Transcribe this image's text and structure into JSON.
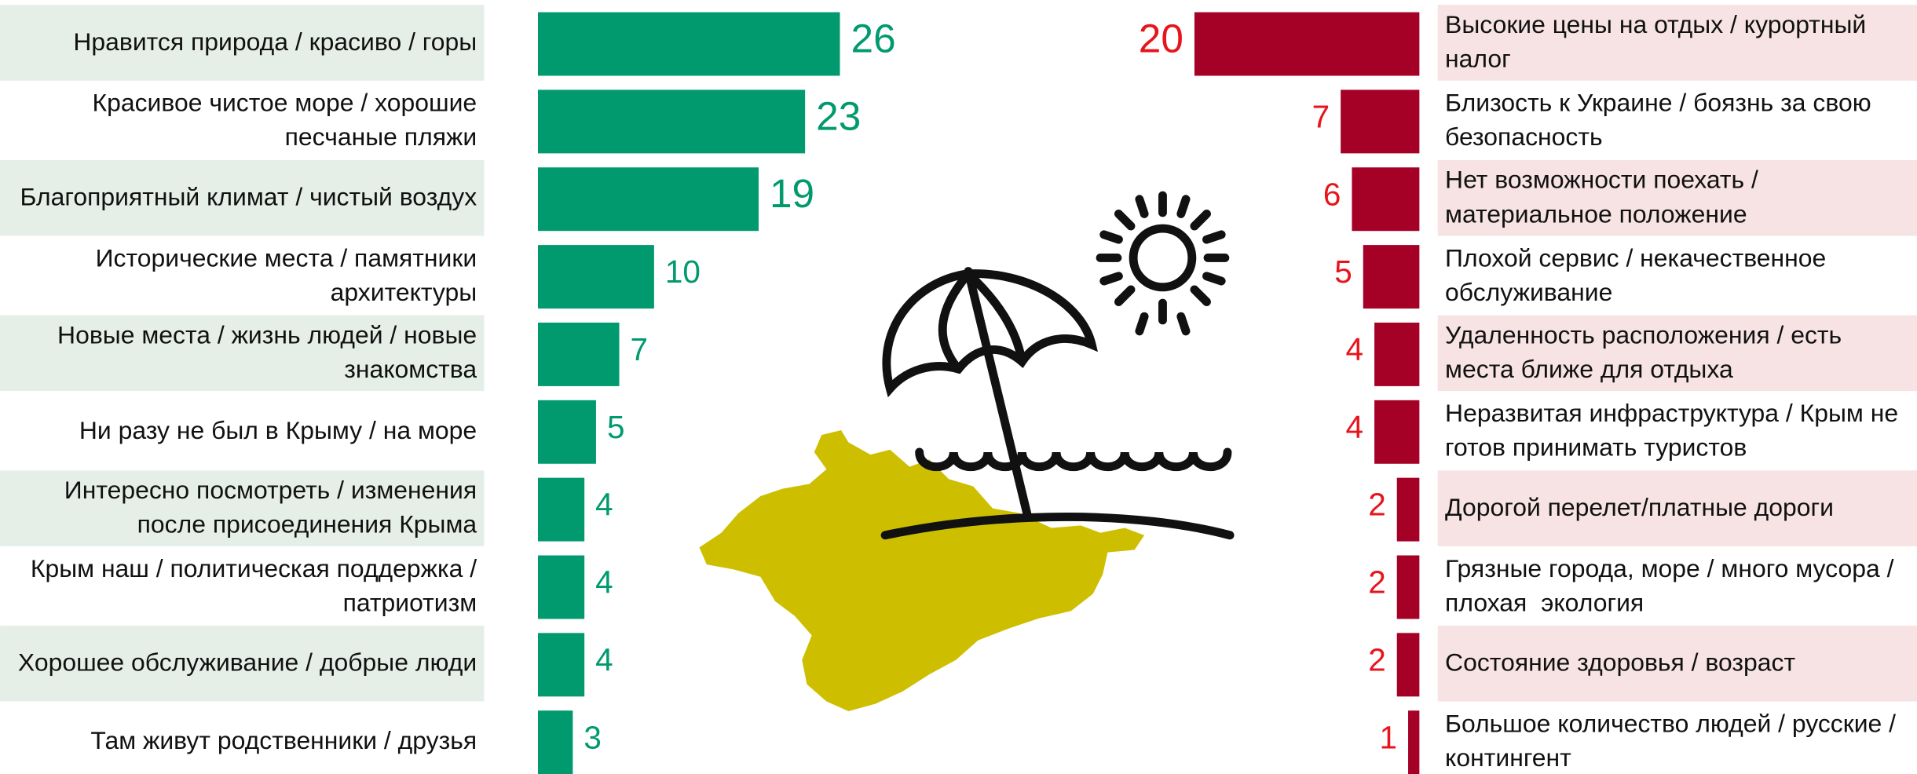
{
  "chart_data": [
    {
      "type": "bar",
      "orientation": "horizontal",
      "color": "#009a6e",
      "label_background": "#e5efe8",
      "categories": [
        "Нравится природа / красиво / горы",
        "Красивое чистое море / хорошие песчаные пляжи",
        "Благоприятный климат / чистый воздух",
        "Исторические места / памятники архитектуры",
        "Новые места / жизнь людей / новые знакомства",
        "Ни разу не был в Крыму / на море",
        "Интересно посмотреть / изменения после присоединения Крыма",
        "Крым наш / политическая поддержка / патриотизм",
        "Хорошее обслуживание / добрые люди",
        "Там живут родственники / друзья"
      ],
      "values": [
        26,
        23,
        19,
        10,
        7,
        5,
        4,
        4,
        4,
        3
      ]
    },
    {
      "type": "bar",
      "orientation": "horizontal",
      "color": "#a50026",
      "label_color": "#e8141c",
      "label_background": "#f7e3e3",
      "categories": [
        "Высокие цены на отдых / курортный налог",
        "Близость к Украине / боязнь за свою безопасность",
        "Нет возможности поехать / материальное положение",
        "Плохой сервис / некачественное обслуживание",
        "Удаленность расположения / есть места ближе для отдыха",
        "Неразвитая инфраструктура / Крым не готов принимать туристов",
        "Дорогой перелет/платные дороги",
        "Грязные города, море / много мусора / плохая  экология",
        "Состояние здоровья / возраст",
        "Большое количество людей / русские / контингент"
      ],
      "values": [
        20,
        7,
        6,
        5,
        4,
        4,
        2,
        2,
        2,
        1
      ]
    }
  ]
}
